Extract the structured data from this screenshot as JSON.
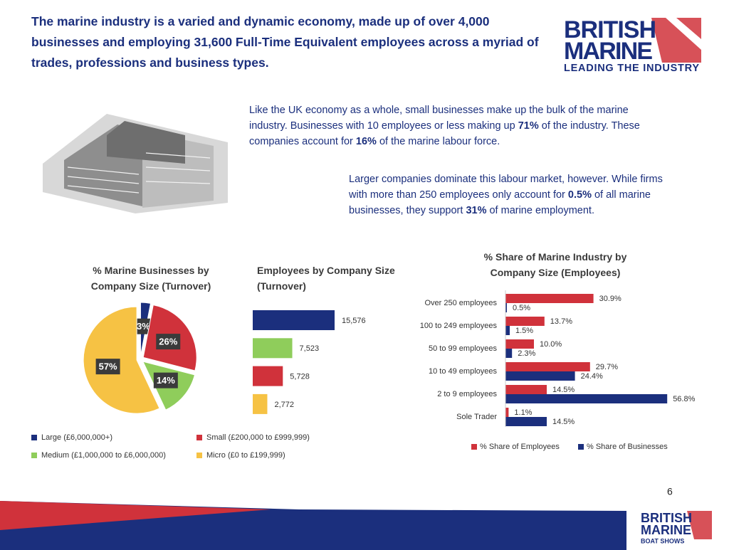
{
  "header": {
    "title": "The marine industry is a varied and dynamic economy, made up of over 4,000 businesses and employing 31,600 Full-Time Equivalent employees across a myriad of trades, professions and business types."
  },
  "logo": {
    "line1": "BRITISH",
    "line2": "MARINE",
    "tagline": "LEADING THE INDUSTRY"
  },
  "paragraphs": [
    [
      "Like the UK economy as a whole, small businesses make up the bulk of the marine industry. Businesses with 10 employees or less making up ",
      "71%",
      " of the industry. These companies account for ",
      "16%",
      " of the marine labour force."
    ],
    [
      "Larger companies dominate this labour market, however. While firms with more than 250 employees only account for ",
      "0.5%",
      " of all marine businesses, they support ",
      "31%",
      " of marine employment."
    ]
  ],
  "chart_data": [
    {
      "type": "pie",
      "title": "% Marine Businesses by Company Size (Turnover)",
      "categories": [
        "Large (£6,000,000+)",
        "Small (£200,000 to £999,999)",
        "Medium (£1,000,000 to £6,000,000)",
        "Micro (£0 to £199,999)"
      ],
      "values": [
        3,
        26,
        14,
        57
      ],
      "value_labels": [
        "3%",
        "26%",
        "14%",
        "57%"
      ],
      "colors": [
        "#1b2f7d",
        "#d0323b",
        "#8fcd5b",
        "#f6c244"
      ]
    },
    {
      "type": "bar",
      "title": "Employees by Company Size (Turnover)",
      "values": [
        15576,
        7523,
        5728,
        2772
      ],
      "value_labels": [
        "15,576",
        "7,523",
        "5,728",
        "2,772"
      ],
      "colors": [
        "#1b2f7d",
        "#8fcd5b",
        "#d0323b",
        "#f6c244"
      ]
    },
    {
      "type": "bar",
      "title": "% Share of Marine Industry by Company Size (Employees)",
      "categories": [
        "Over 250 employees",
        "100 to 249 employees",
        "50 to 99 employees",
        "10 to 49 employees",
        "2 to 9 employees",
        "Sole Trader"
      ],
      "series": [
        {
          "name": "% Share of Employees",
          "color": "#d0323b",
          "values": [
            30.9,
            13.7,
            10.0,
            29.7,
            14.5,
            1.1
          ],
          "value_labels": [
            "30.9%",
            "13.7%",
            "10.0%",
            "29.7%",
            "14.5%",
            "1.1%"
          ]
        },
        {
          "name": "% Share of Businesses",
          "color": "#1b2f7d",
          "values": [
            0.5,
            1.5,
            2.3,
            24.4,
            56.8,
            14.5
          ],
          "value_labels": [
            "0.5%",
            "1.5%",
            "2.3%",
            "24.4%",
            "56.8%",
            "14.5%"
          ]
        }
      ]
    }
  ],
  "page_number": "6",
  "footer_logo": {
    "line1": "BRITISH",
    "line2": "MARINE",
    "tagline": "BOAT SHOWS"
  }
}
